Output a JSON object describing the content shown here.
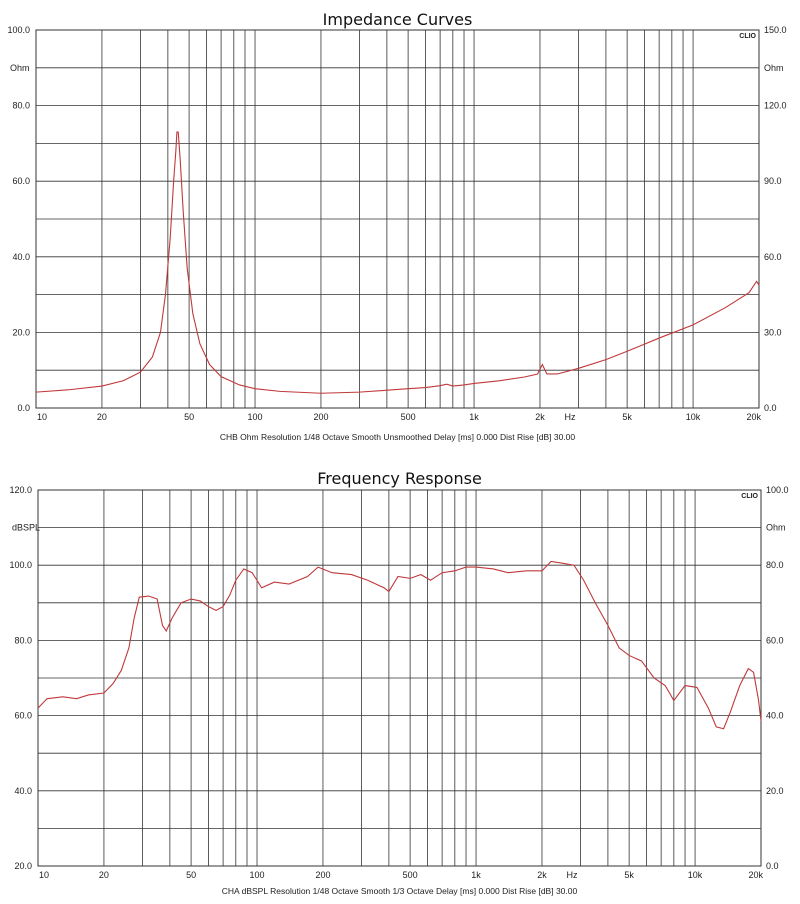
{
  "chart_data": [
    {
      "type": "line",
      "title": "Impedance Curves",
      "logo": "CLIO",
      "x_scale": "log",
      "xlim": [
        10,
        20000
      ],
      "ylim_left": [
        0,
        100
      ],
      "ylim_right": [
        0,
        150
      ],
      "left_unit": "Ohm",
      "right_unit": "Ohm",
      "left_ticks": [
        "0.0",
        "20.0",
        "40.0",
        "60.0",
        "80.0",
        "100.0"
      ],
      "right_ticks": [
        "0.0",
        "30.0",
        "60.0",
        "90.0",
        "120.0",
        "150.0"
      ],
      "x_tick_labels": [
        {
          "value": 10,
          "label": "10"
        },
        {
          "value": 20,
          "label": "20"
        },
        {
          "value": 50,
          "label": "50"
        },
        {
          "value": 100,
          "label": "100"
        },
        {
          "value": 200,
          "label": "200"
        },
        {
          "value": 500,
          "label": "500"
        },
        {
          "value": 1000,
          "label": "1k"
        },
        {
          "value": 2000,
          "label": "2k"
        },
        {
          "value": 5000,
          "label": "5k"
        },
        {
          "value": 10000,
          "label": "10k"
        },
        {
          "value": 20000,
          "label": "20k"
        }
      ],
      "x_unit_label": "Hz",
      "grid": true,
      "footer": "CHB Ohm Resolution 1/48 Octave Smooth Unsmoothed Delay [ms] 0.000 Dist Rise [dB] 30.00",
      "series": [
        {
          "color": "#c0393b",
          "points": [
            [
              10,
              4.2
            ],
            [
              14,
              4.8
            ],
            [
              20,
              5.8
            ],
            [
              25,
              7.2
            ],
            [
              30,
              9.5
            ],
            [
              34,
              13.5
            ],
            [
              37,
              20
            ],
            [
              39,
              30
            ],
            [
              41,
              45
            ],
            [
              42.5,
              60
            ],
            [
              43.5,
              68
            ],
            [
              44,
              73
            ],
            [
              44.6,
              73
            ],
            [
              45.5,
              66
            ],
            [
              47,
              52
            ],
            [
              49,
              37
            ],
            [
              52,
              25
            ],
            [
              56,
              17
            ],
            [
              62,
              11.5
            ],
            [
              70,
              8.3
            ],
            [
              85,
              6.1
            ],
            [
              100,
              5.1
            ],
            [
              130,
              4.4
            ],
            [
              200,
              3.9
            ],
            [
              300,
              4.2
            ],
            [
              400,
              4.7
            ],
            [
              500,
              5.1
            ],
            [
              600,
              5.4
            ],
            [
              700,
              5.9
            ],
            [
              750,
              6.3
            ],
            [
              800,
              5.8
            ],
            [
              900,
              6.1
            ],
            [
              1000,
              6.5
            ],
            [
              1300,
              7.2
            ],
            [
              1700,
              8.2
            ],
            [
              1950,
              9.0
            ],
            [
              2050,
              11.5
            ],
            [
              2150,
              9.0
            ],
            [
              2400,
              9.0
            ],
            [
              3000,
              10.5
            ],
            [
              4000,
              12.8
            ],
            [
              5000,
              15.0
            ],
            [
              7000,
              18.5
            ],
            [
              10000,
              22.0
            ],
            [
              14000,
              26.5
            ],
            [
              18000,
              30.5
            ],
            [
              19500,
              33.5
            ],
            [
              20000,
              32.5
            ]
          ]
        }
      ]
    },
    {
      "type": "line",
      "title": "Frequency Response",
      "logo": "CLIO",
      "x_scale": "log",
      "xlim": [
        10,
        20000
      ],
      "ylim_left": [
        20,
        120
      ],
      "ylim_right": [
        0,
        100
      ],
      "left_unit": "dBSPL",
      "right_unit": "Ohm",
      "left_ticks": [
        "20.0",
        "40.0",
        "60.0",
        "80.0",
        "100.0",
        "120.0"
      ],
      "right_ticks": [
        "0.0",
        "20.0",
        "40.0",
        "60.0",
        "80.0",
        "100.0"
      ],
      "x_tick_labels": [
        {
          "value": 10,
          "label": "10"
        },
        {
          "value": 20,
          "label": "20"
        },
        {
          "value": 50,
          "label": "50"
        },
        {
          "value": 100,
          "label": "100"
        },
        {
          "value": 200,
          "label": "200"
        },
        {
          "value": 500,
          "label": "500"
        },
        {
          "value": 1000,
          "label": "1k"
        },
        {
          "value": 2000,
          "label": "2k"
        },
        {
          "value": 5000,
          "label": "5k"
        },
        {
          "value": 10000,
          "label": "10k"
        },
        {
          "value": 20000,
          "label": "20k"
        }
      ],
      "x_unit_label": "Hz",
      "grid": true,
      "footer": "CHA dBSPL Resolution 1/48 Octave Smooth 1/3 Octave Delay [ms] 0.000 Dist Rise [dB] 30.00",
      "series": [
        {
          "color": "#c0393b",
          "points": [
            [
              10,
              62
            ],
            [
              11,
              64.5
            ],
            [
              13,
              65
            ],
            [
              15,
              64.5
            ],
            [
              17,
              65.5
            ],
            [
              20,
              66
            ],
            [
              22,
              68.5
            ],
            [
              24,
              72
            ],
            [
              26,
              78
            ],
            [
              27.5,
              86
            ],
            [
              29,
              91.5
            ],
            [
              32,
              91.8
            ],
            [
              35,
              91
            ],
            [
              37,
              84
            ],
            [
              38.5,
              82.5
            ],
            [
              41,
              86
            ],
            [
              45,
              90
            ],
            [
              50,
              91
            ],
            [
              55,
              90.5
            ],
            [
              60,
              89
            ],
            [
              65,
              88
            ],
            [
              70,
              89
            ],
            [
              75,
              92
            ],
            [
              80,
              96
            ],
            [
              87,
              99
            ],
            [
              95,
              98
            ],
            [
              105,
              94
            ],
            [
              120,
              95.5
            ],
            [
              140,
              95
            ],
            [
              170,
              97
            ],
            [
              190,
              99.5
            ],
            [
              220,
              98
            ],
            [
              270,
              97.5
            ],
            [
              320,
              96
            ],
            [
              380,
              94
            ],
            [
              400,
              93
            ],
            [
              440,
              97
            ],
            [
              500,
              96.5
            ],
            [
              560,
              97.5
            ],
            [
              620,
              96
            ],
            [
              700,
              98
            ],
            [
              800,
              98.5
            ],
            [
              900,
              99.5
            ],
            [
              1000,
              99.5
            ],
            [
              1200,
              99
            ],
            [
              1400,
              98
            ],
            [
              1700,
              98.5
            ],
            [
              2000,
              98.5
            ],
            [
              2200,
              101
            ],
            [
              2500,
              100.5
            ],
            [
              2800,
              100
            ],
            [
              3100,
              96
            ],
            [
              3500,
              90
            ],
            [
              4000,
              84
            ],
            [
              4500,
              78
            ],
            [
              5000,
              76
            ],
            [
              5700,
              74.5
            ],
            [
              6500,
              70
            ],
            [
              7300,
              68
            ],
            [
              8000,
              64
            ],
            [
              9000,
              68
            ],
            [
              10200,
              67.5
            ],
            [
              11500,
              62
            ],
            [
              12500,
              57
            ],
            [
              13500,
              56.5
            ],
            [
              14500,
              61
            ],
            [
              16000,
              68
            ],
            [
              17500,
              72.5
            ],
            [
              18500,
              71.5
            ],
            [
              19500,
              64
            ],
            [
              20000,
              58.5
            ]
          ]
        }
      ]
    }
  ]
}
